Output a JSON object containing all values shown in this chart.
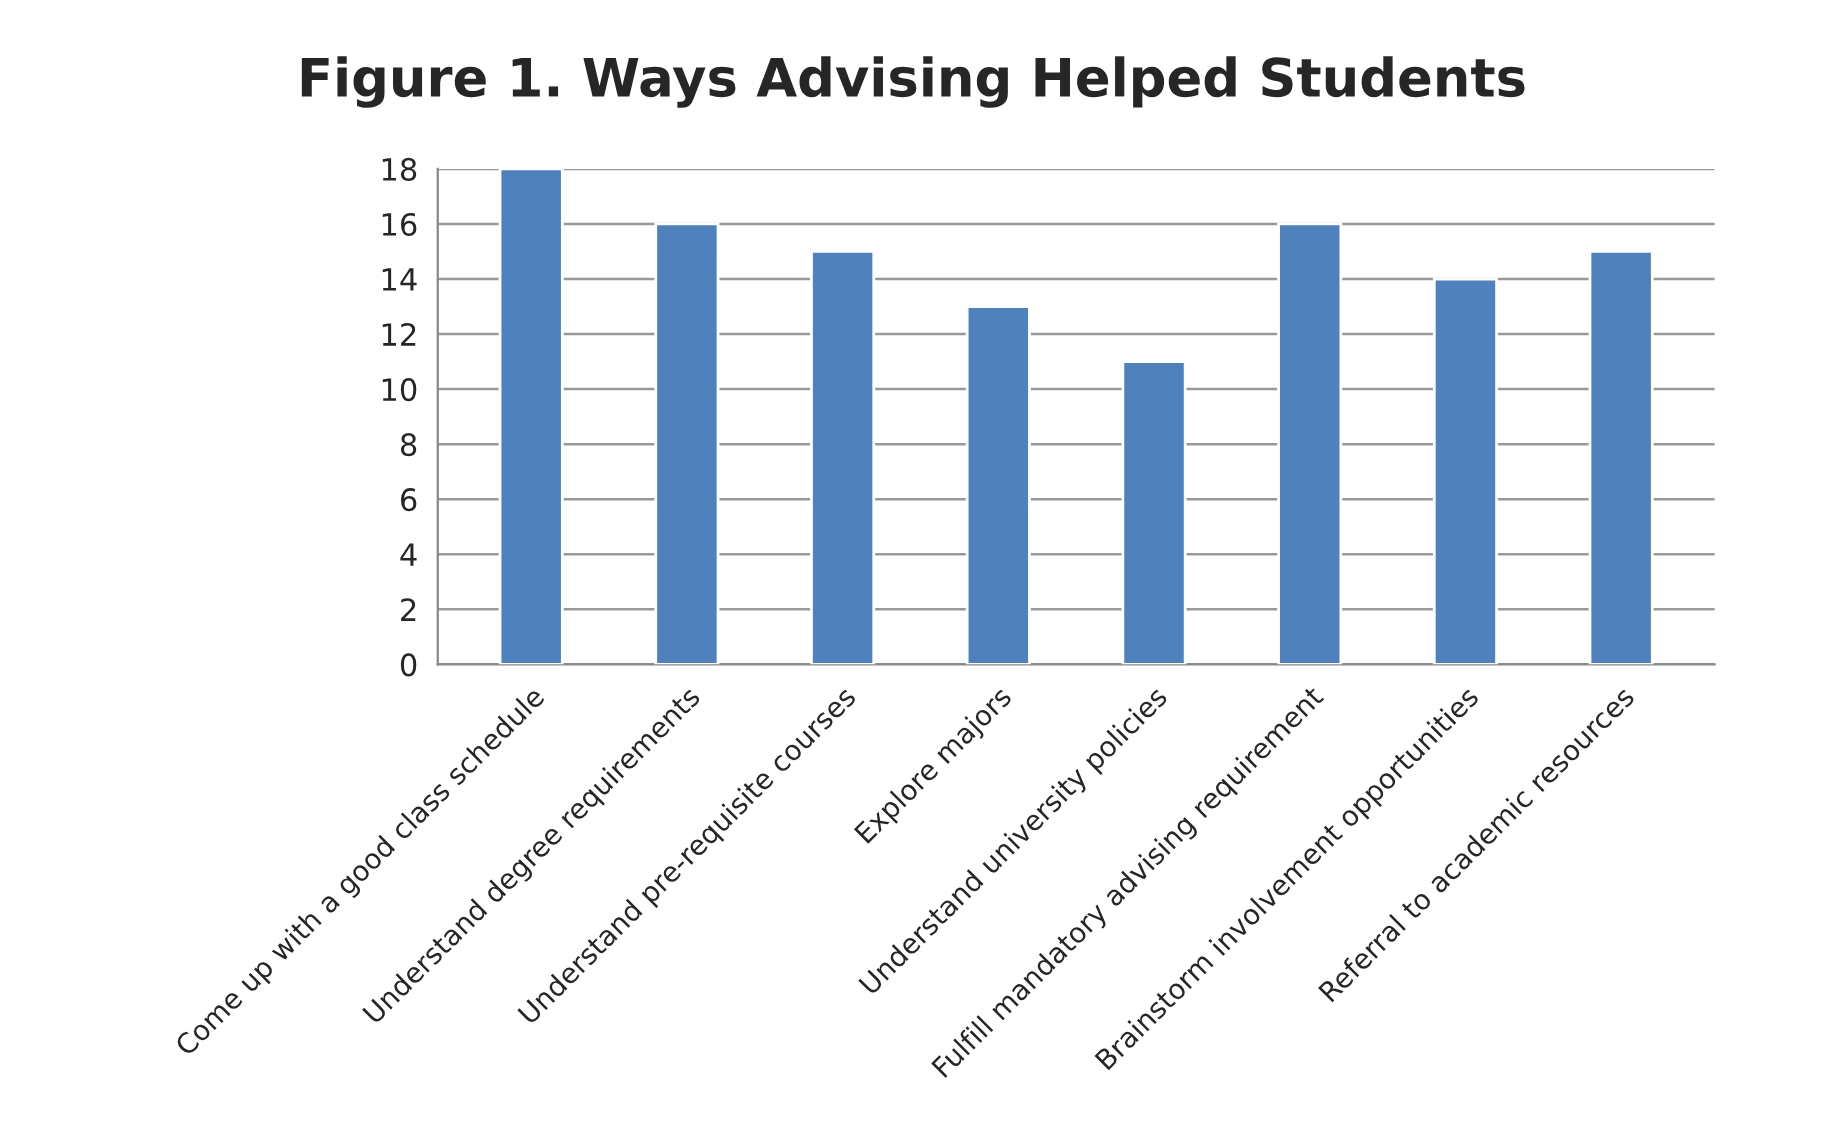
{
  "chart_data": {
    "type": "bar",
    "title": "Figure 1. Ways Advising Helped Students",
    "categories": [
      "Come up with a good class schedule",
      "Understand degree requirements",
      "Understand pre-requisite courses",
      "Explore majors",
      "Understand university policies",
      "Fulfill mandatory advising requirement",
      "Brainstorm involvement opportunities",
      "Referral to academic resources"
    ],
    "values": [
      18,
      16,
      15,
      13,
      11,
      16,
      14,
      15
    ],
    "color": "#4f81bd",
    "ylim": [
      0,
      18
    ],
    "yticks": [
      0,
      2,
      4,
      6,
      8,
      10,
      12,
      14,
      16,
      18
    ],
    "grid": "y"
  }
}
